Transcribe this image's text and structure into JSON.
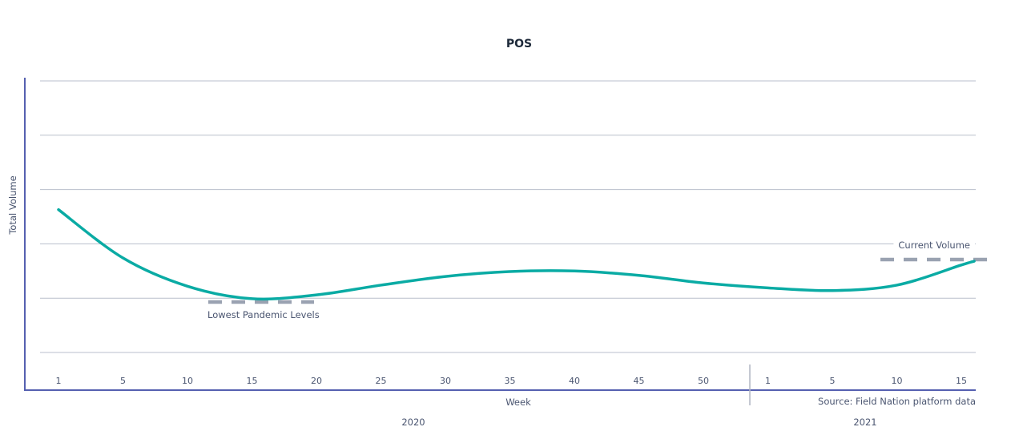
{
  "chart_data": {
    "type": "line",
    "title": "POS",
    "xlabel": "Week",
    "ylabel": "Total Volume",
    "source": "Source: Field Nation platform data",
    "grid": true,
    "y_tick_labels_shown": false,
    "ylim": [
      0,
      5
    ],
    "groups": [
      {
        "label": "2020",
        "ticks": [
          "1",
          "5",
          "10",
          "15",
          "20",
          "25",
          "30",
          "35",
          "40",
          "45",
          "50"
        ]
      },
      {
        "label": "2021",
        "ticks": [
          "1",
          "5",
          "10",
          "15"
        ]
      }
    ],
    "series": [
      {
        "color": "#0aaba4",
        "points": [
          {
            "year": "2020",
            "week": 1,
            "value": 2.63
          },
          {
            "year": "2020",
            "week": 5,
            "value": 1.74
          },
          {
            "year": "2020",
            "week": 10,
            "value": 1.22
          },
          {
            "year": "2020",
            "week": 15,
            "value": 0.99
          },
          {
            "year": "2020",
            "week": 20,
            "value": 1.06
          },
          {
            "year": "2020",
            "week": 25,
            "value": 1.24
          },
          {
            "year": "2020",
            "week": 30,
            "value": 1.4
          },
          {
            "year": "2020",
            "week": 35,
            "value": 1.49
          },
          {
            "year": "2020",
            "week": 40,
            "value": 1.5
          },
          {
            "year": "2020",
            "week": 45,
            "value": 1.42
          },
          {
            "year": "2020",
            "week": 50,
            "value": 1.28
          },
          {
            "year": "2021",
            "week": 1,
            "value": 1.19
          },
          {
            "year": "2021",
            "week": 5,
            "value": 1.14
          },
          {
            "year": "2021",
            "week": 10,
            "value": 1.24
          },
          {
            "year": "2021",
            "week": 15,
            "value": 1.61
          },
          {
            "year": "2021",
            "week": 16,
            "value": 1.68
          }
        ]
      }
    ],
    "annotations": [
      {
        "text": "Lowest Pandemic Levels",
        "value": 0.93,
        "style": "dashed",
        "color": "#9aa2b1"
      },
      {
        "text": "Current Volume",
        "value": 1.71,
        "style": "dashed",
        "color": "#9aa2b1"
      }
    ],
    "colors": {
      "axis": "#5560b0",
      "grid": "#b9bfcc",
      "text": "#4a5570"
    }
  }
}
